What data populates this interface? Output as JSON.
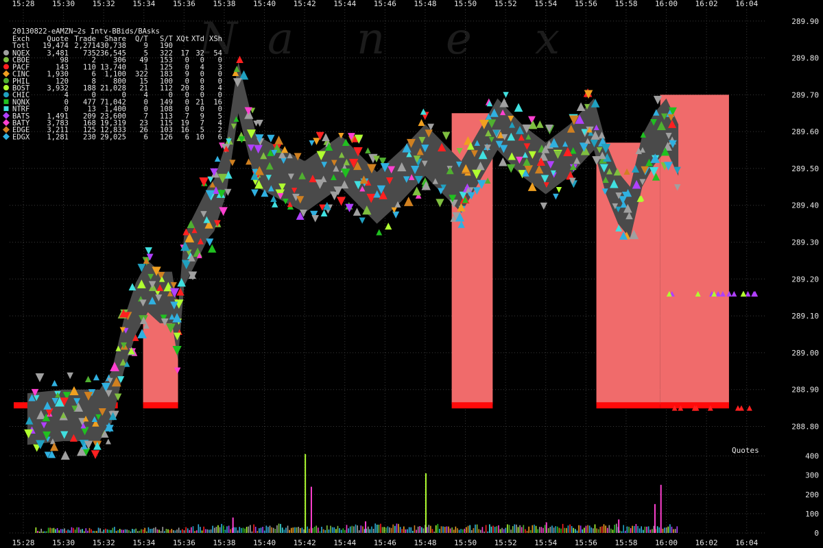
{
  "watermark": [
    "N",
    "a",
    "n",
    "e",
    "x"
  ],
  "table": {
    "title": "20130822-eAMZN~2s Intv-BBids/BAsks",
    "columns": [
      "Exch",
      "Quote",
      "Trade",
      "Share",
      "Q/T",
      "S/T",
      "XQt",
      "XTd",
      "XSh"
    ],
    "total": [
      "Totl",
      "19,474",
      "2,271",
      "430,738",
      "9",
      "190",
      "",
      "",
      ""
    ],
    "rows": [
      {
        "cells": [
          "NQEX",
          "3,481",
          "735",
          "236,545",
          "5",
          "322",
          "17",
          "32",
          "54"
        ],
        "color": "#a0a0a0",
        "shape": "circle"
      },
      {
        "cells": [
          "CBOE",
          "98",
          "2",
          "306",
          "49",
          "153",
          "0",
          "0",
          "0"
        ],
        "color": "#7fbf3f",
        "shape": "circle"
      },
      {
        "cells": [
          "PACF",
          "143",
          "110",
          "13,740",
          "1",
          "125",
          "0",
          "4",
          "3"
        ],
        "color": "#ff2020",
        "shape": "circle"
      },
      {
        "cells": [
          "CINC",
          "1,930",
          "6",
          "1,100",
          "322",
          "183",
          "9",
          "0",
          "0"
        ],
        "color": "#f0a020",
        "shape": "diamond"
      },
      {
        "cells": [
          "PHIL",
          "120",
          "8",
          "800",
          "15",
          "100",
          "0",
          "0",
          "0"
        ],
        "color": "#50b030",
        "shape": "circle"
      },
      {
        "cells": [
          "BOST",
          "3,932",
          "188",
          "21,028",
          "21",
          "112",
          "20",
          "8",
          "4"
        ],
        "color": "#b0ff30",
        "shape": "circle"
      },
      {
        "cells": [
          "CHIC",
          "4",
          "0",
          "0",
          "4",
          "0",
          "0",
          "0",
          "0"
        ],
        "color": "#20a0c0",
        "shape": "circle"
      },
      {
        "cells": [
          "NQNX",
          "0",
          "477",
          "71,042",
          "0",
          "149",
          "0",
          "21",
          "16"
        ],
        "color": "#20c020",
        "shape": "square"
      },
      {
        "cells": [
          "NTRF",
          "0",
          "13",
          "1,400",
          "0",
          "108",
          "0",
          "0",
          "0"
        ],
        "color": "#40e0e0",
        "shape": "square"
      },
      {
        "cells": [
          "BATS",
          "1,491",
          "209",
          "23,600",
          "7",
          "113",
          "7",
          "9",
          "5"
        ],
        "color": "#b040ff",
        "shape": "diamond"
      },
      {
        "cells": [
          "BATY",
          "3,783",
          "168",
          "19,319",
          "23",
          "115",
          "19",
          "7",
          "4"
        ],
        "color": "#ff40d0",
        "shape": "diamond"
      },
      {
        "cells": [
          "EDGE",
          "3,211",
          "125",
          "12,833",
          "26",
          "103",
          "16",
          "5",
          "2"
        ],
        "color": "#d08020",
        "shape": "diamond"
      },
      {
        "cells": [
          "EDGX",
          "1,281",
          "230",
          "29,025",
          "6",
          "126",
          "6",
          "10",
          "6"
        ],
        "color": "#30b0e0",
        "shape": "diamond"
      }
    ]
  },
  "quotes_label": "Quotes",
  "chart_data": {
    "type": "area",
    "x_ticks": [
      "15:28",
      "15:30",
      "15:32",
      "15:34",
      "15:36",
      "15:38",
      "15:40",
      "15:42",
      "15:44",
      "15:46",
      "15:48",
      "15:50",
      "15:52",
      "15:54",
      "15:56",
      "15:58",
      "16:00",
      "16:02",
      "16:04"
    ],
    "x_range": [
      "15:28",
      "16:05"
    ],
    "price_ticks": [
      "288.80",
      "288.90",
      "289.00",
      "289.10",
      "289.20",
      "289.30",
      "289.40",
      "289.50",
      "289.60",
      "289.70",
      "289.80",
      "289.90"
    ],
    "price_range": [
      288.76,
      289.92
    ],
    "volume_ticks": [
      "0",
      "100",
      "200",
      "300",
      "400"
    ],
    "volume_range": [
      0,
      420
    ],
    "grid": true,
    "best_bid_band": [
      {
        "t": 15.47,
        "p": 288.82
      },
      {
        "t": 15.5,
        "p": 288.83
      },
      {
        "t": 15.53,
        "p": 288.83
      },
      {
        "t": 15.54,
        "p": 288.88
      },
      {
        "t": 15.55,
        "p": 289.02
      },
      {
        "t": 15.56,
        "p": 289.12
      },
      {
        "t": 15.57,
        "p": 289.18
      },
      {
        "t": 15.58,
        "p": 289.15
      },
      {
        "t": 15.59,
        "p": 289.15
      },
      {
        "t": 15.595,
        "p": 289.05
      },
      {
        "t": 15.6,
        "p": 289.25
      },
      {
        "t": 15.62,
        "p": 289.38
      },
      {
        "t": 15.625,
        "p": 289.4
      },
      {
        "t": 15.635,
        "p": 289.5
      },
      {
        "t": 15.645,
        "p": 289.72
      },
      {
        "t": 15.66,
        "p": 289.52
      },
      {
        "t": 15.7,
        "p": 289.45
      },
      {
        "t": 15.73,
        "p": 289.52
      },
      {
        "t": 15.76,
        "p": 289.42
      },
      {
        "t": 15.78,
        "p": 289.48
      },
      {
        "t": 15.8,
        "p": 289.55
      },
      {
        "t": 15.83,
        "p": 289.45
      },
      {
        "t": 15.86,
        "p": 289.62
      },
      {
        "t": 15.88,
        "p": 289.55
      },
      {
        "t": 15.9,
        "p": 289.5
      },
      {
        "t": 15.92,
        "p": 289.55
      },
      {
        "t": 15.94,
        "p": 289.62
      },
      {
        "t": 15.95,
        "p": 289.5
      },
      {
        "t": 15.96,
        "p": 289.42
      },
      {
        "t": 15.97,
        "p": 289.38
      },
      {
        "t": 15.98,
        "p": 289.52
      },
      {
        "t": 15.99,
        "p": 289.58
      },
      {
        "t": 16.0,
        "p": 289.62
      },
      {
        "t": 16.01,
        "p": 289.55
      }
    ],
    "trade_volume": [
      {
        "t": 15.7,
        "v": 410
      },
      {
        "t": 15.705,
        "v": 240
      },
      {
        "t": 15.8,
        "v": 310
      },
      {
        "t": 15.995,
        "v": 250
      },
      {
        "t": 15.99,
        "v": 150
      },
      {
        "t": 15.64,
        "v": 80
      },
      {
        "t": 15.75,
        "v": 60
      },
      {
        "t": 15.9,
        "v": 55
      },
      {
        "t": 15.96,
        "v": 70
      }
    ],
    "pink_blocks": [
      {
        "t0": 15.566,
        "t1": 15.595,
        "top": 289.14
      },
      {
        "t0": 15.822,
        "t1": 15.856,
        "top": 289.65
      },
      {
        "t0": 15.942,
        "t1": 15.995,
        "top": 289.57
      },
      {
        "t0": 15.995,
        "t1": 16.052,
        "top": 289.7
      }
    ]
  }
}
